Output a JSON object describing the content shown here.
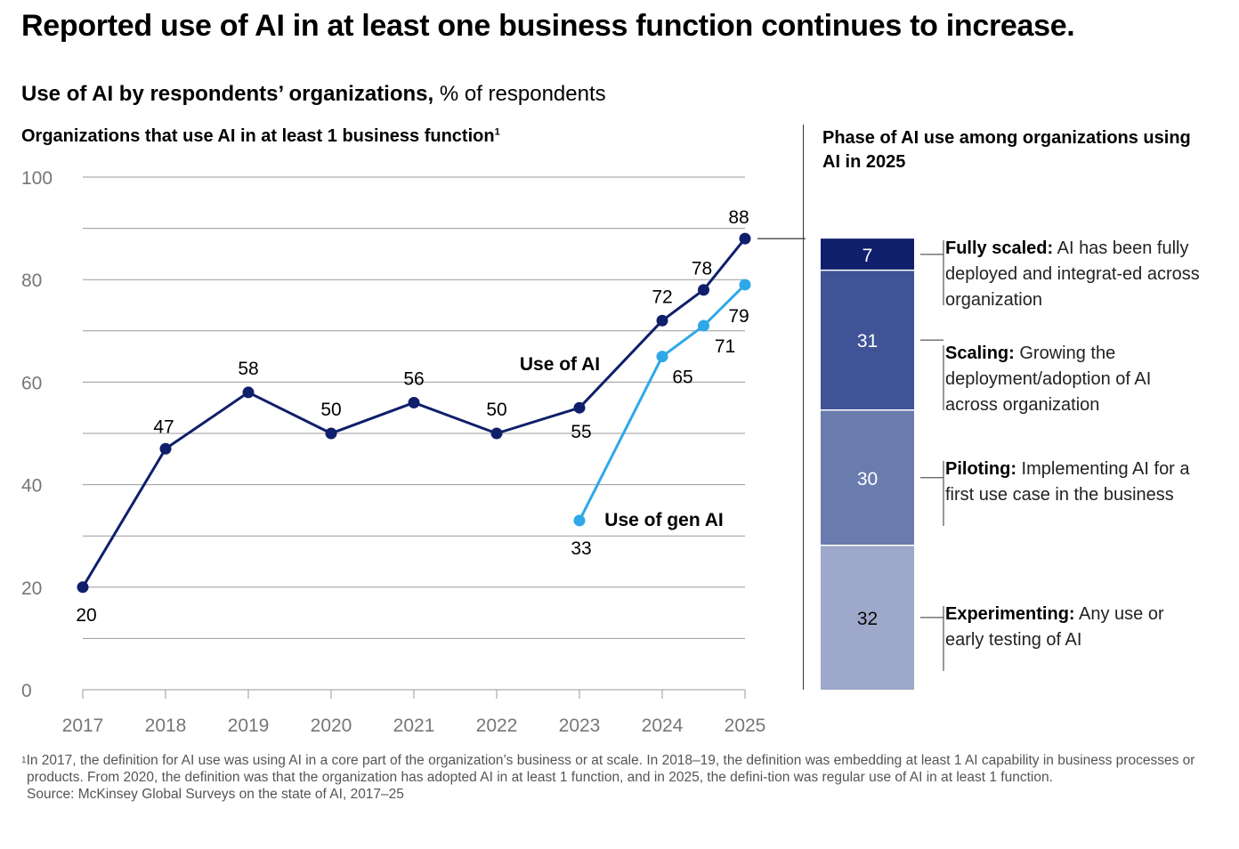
{
  "header": {
    "title": "Reported use of AI in at least one business function continues to increase.",
    "subtitle_bold": "Use of AI by respondents’ organizations,",
    "subtitle_rest": " % of respondents"
  },
  "left_panel": {
    "title": "Organizations that use AI in at least 1 business function",
    "footnote_marker": "1"
  },
  "right_panel": {
    "title": "Phase of AI use among organizations using AI in 2025"
  },
  "chart_data": [
    {
      "type": "line",
      "title": "Organizations that use AI in at least 1 business function",
      "ylim": [
        0,
        100
      ],
      "yticks": [
        0,
        20,
        40,
        60,
        80,
        100
      ],
      "xticks": [
        "2017",
        "2018",
        "2019",
        "2020",
        "2021",
        "2022",
        "2023",
        "2024",
        "2025"
      ],
      "grid": true,
      "series": [
        {
          "name": "Use of AI",
          "color": "#0f1f6b",
          "x": [
            2017,
            2018,
            2019,
            2020,
            2021,
            2022,
            2023,
            2024,
            2024.5,
            2025
          ],
          "values": [
            20,
            47,
            58,
            50,
            56,
            50,
            55,
            72,
            78,
            88
          ],
          "labels": [
            "20",
            "47",
            "58",
            "50",
            "56",
            "50",
            "55",
            "72",
            "78",
            "88"
          ]
        },
        {
          "name": "Use of gen AI",
          "color": "#2ea8e8",
          "x": [
            2023,
            2024,
            2024.5,
            2025
          ],
          "values": [
            33,
            65,
            71,
            79
          ],
          "labels": [
            "33",
            "65",
            "71",
            "79"
          ]
        }
      ]
    },
    {
      "type": "bar",
      "title": "Phase of AI use among organizations using AI in 2025",
      "stacked": true,
      "segments": [
        {
          "name": "Fully scaled:",
          "value": 7,
          "color": "#0f1f6b",
          "description": " AI has been fully deployed and integrat-ed across organization"
        },
        {
          "name": "Scaling:",
          "value": 31,
          "color": "#3f5396",
          "description": " Growing the deployment/adoption of AI across organization"
        },
        {
          "name": "Piloting:",
          "value": 30,
          "color": "#6a7bae",
          "description": " Implementing AI for a first use case in the business"
        },
        {
          "name": "Experimenting:",
          "value": 32,
          "color": "#9da8ca",
          "description": " Any use or early testing of AI"
        }
      ]
    }
  ],
  "footnotes": {
    "marker": "1",
    "note": "In 2017, the definition for AI use was using AI in a core part of the organization’s business or at scale. In 2018–19, the definition was embedding at least 1 AI capability in business processes or products. From 2020, the definition was that the organization has adopted AI in at least 1 function, and in 2025, the defini-tion was regular use of AI in at least 1 function.",
    "source": "Source: McKinsey Global Surveys on the state of AI, 2017–25"
  }
}
